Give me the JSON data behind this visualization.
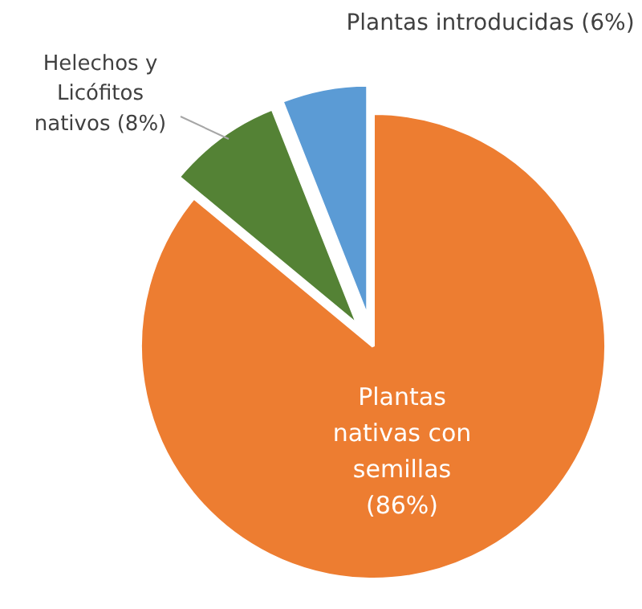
{
  "chart_data": {
    "type": "pie",
    "categories": [
      "Plantas nativas con semillas",
      "Helechos y Licófitos nativos",
      "Plantas introducidas"
    ],
    "values": [
      86,
      8,
      6
    ],
    "colors": [
      "#ed7d31",
      "#548235",
      "#5b9bd5"
    ],
    "value_labels": [
      "(86%)",
      "(8%)",
      "(6%)"
    ]
  }
}
